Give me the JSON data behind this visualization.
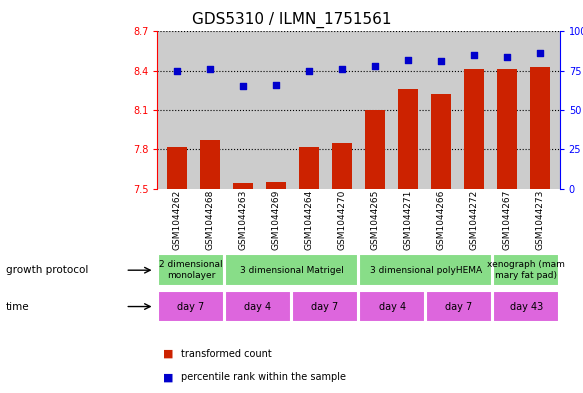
{
  "title": "GDS5310 / ILMN_1751561",
  "samples": [
    "GSM1044262",
    "GSM1044268",
    "GSM1044263",
    "GSM1044269",
    "GSM1044264",
    "GSM1044270",
    "GSM1044265",
    "GSM1044271",
    "GSM1044266",
    "GSM1044272",
    "GSM1044267",
    "GSM1044273"
  ],
  "bar_values": [
    7.82,
    7.87,
    7.54,
    7.55,
    7.82,
    7.85,
    8.1,
    8.26,
    8.22,
    8.41,
    8.41,
    8.43
  ],
  "dot_values": [
    75,
    76,
    65,
    66,
    75,
    76,
    78,
    82,
    81,
    85,
    84,
    86
  ],
  "ylim_left": [
    7.5,
    8.7
  ],
  "ylim_right": [
    0,
    100
  ],
  "yticks_left": [
    7.5,
    7.8,
    8.1,
    8.4,
    8.7
  ],
  "yticks_right": [
    0,
    25,
    50,
    75,
    100
  ],
  "bar_color": "#cc2200",
  "dot_color": "#0000cc",
  "bg_color": "#cccccc",
  "growth_protocol_groups": [
    {
      "label": "2 dimensional\nmonolayer",
      "start": 0,
      "end": 2,
      "color": "#88dd88"
    },
    {
      "label": "3 dimensional Matrigel",
      "start": 2,
      "end": 6,
      "color": "#88dd88"
    },
    {
      "label": "3 dimensional polyHEMA",
      "start": 6,
      "end": 10,
      "color": "#88dd88"
    },
    {
      "label": "xenograph (mam\nmary fat pad)",
      "start": 10,
      "end": 12,
      "color": "#88dd88"
    }
  ],
  "time_groups": [
    {
      "label": "day 7",
      "start": 0,
      "end": 2,
      "color": "#dd66dd"
    },
    {
      "label": "day 4",
      "start": 2,
      "end": 4,
      "color": "#dd66dd"
    },
    {
      "label": "day 7",
      "start": 4,
      "end": 6,
      "color": "#dd66dd"
    },
    {
      "label": "day 4",
      "start": 6,
      "end": 8,
      "color": "#dd66dd"
    },
    {
      "label": "day 7",
      "start": 8,
      "end": 10,
      "color": "#dd66dd"
    },
    {
      "label": "day 43",
      "start": 10,
      "end": 12,
      "color": "#dd66dd"
    }
  ],
  "legend_bar_label": "transformed count",
  "legend_dot_label": "percentile rank within the sample",
  "growth_protocol_label": "growth protocol",
  "time_label": "time",
  "title_fontsize": 11,
  "tick_fontsize": 7,
  "sample_fontsize": 6.5,
  "label_fontsize": 8,
  "row_label_fontsize": 7.5
}
